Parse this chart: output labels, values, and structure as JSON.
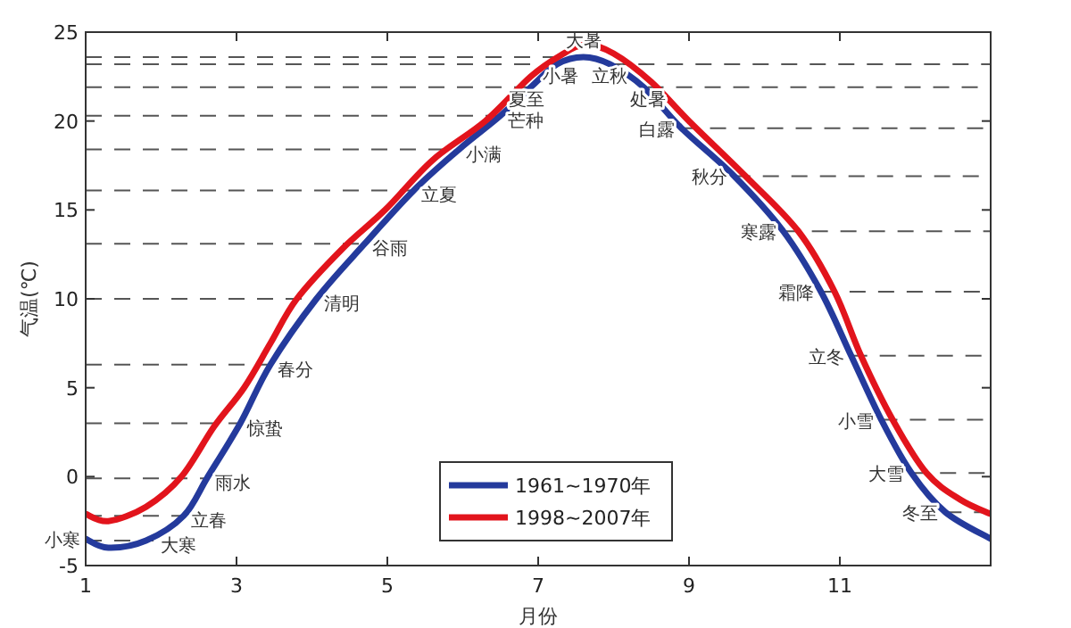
{
  "chart_data": {
    "type": "line",
    "xlabel": "月份",
    "ylabel": "气温(℃)",
    "xlim": [
      1,
      13
    ],
    "ylim": [
      -5,
      25
    ],
    "xticks": [
      1,
      3,
      5,
      7,
      9,
      11
    ],
    "yticks": [
      -5,
      0,
      5,
      10,
      15,
      20,
      25
    ],
    "grid": false,
    "legend": "bottom",
    "marker": "none",
    "line_style": "solid",
    "series": [
      {
        "name": "1961~1970年",
        "color": "#243a9c",
        "x": [
          1,
          1.3,
          1.8,
          2.3,
          2.62,
          3.05,
          3.45,
          4.06,
          4.7,
          5.35,
          5.95,
          6.5,
          6.9,
          7.25,
          7.6,
          7.95,
          8.4,
          8.9,
          9.6,
          10.25,
          10.75,
          11.15,
          11.55,
          11.95,
          12.4,
          13
        ],
        "values": [
          -3.5,
          -4.0,
          -3.6,
          -2.2,
          0,
          3.0,
          6.3,
          10,
          13.1,
          16.1,
          18.4,
          20.3,
          21.9,
          23.2,
          23.6,
          23.2,
          21.9,
          19.6,
          16.9,
          13.8,
          10.4,
          6.8,
          3.2,
          0.2,
          -2.0,
          -3.5
        ]
      },
      {
        "name": "1998~2007年",
        "color": "#e2141c",
        "x": [
          1,
          1.3,
          1.8,
          2.27,
          2.7,
          3.1,
          3.45,
          3.8,
          4.4,
          4.97,
          5.6,
          6.3,
          6.9,
          7.3,
          7.63,
          8.0,
          8.5,
          9.0,
          9.75,
          10.45,
          10.93,
          11.28,
          11.7,
          12.15,
          12.6,
          13
        ],
        "values": [
          -2.1,
          -2.5,
          -1.7,
          0,
          2.8,
          5,
          7.5,
          10,
          12.8,
          15,
          17.8,
          20,
          22.5,
          23.7,
          24.3,
          23.8,
          22.2,
          20,
          16.9,
          13.8,
          10.4,
          6.8,
          3.2,
          0.2,
          -1.3,
          -2.1
        ]
      }
    ],
    "annotations": [
      {
        "text": "小寒",
        "x": 1,
        "y": -3.5
      },
      {
        "text": "大寒",
        "x": 1.9,
        "y": -3.6
      },
      {
        "text": "立春",
        "x": 2.3,
        "y": -2.2
      },
      {
        "text": "雨水",
        "x": 2.62,
        "y": -0.1
      },
      {
        "text": "惊蛰",
        "x": 3.05,
        "y": 3.0
      },
      {
        "text": "春分",
        "x": 3.45,
        "y": 6.3
      },
      {
        "text": "清明",
        "x": 4.06,
        "y": 10.0
      },
      {
        "text": "谷雨",
        "x": 4.7,
        "y": 13.1
      },
      {
        "text": "立夏",
        "x": 5.35,
        "y": 16.1
      },
      {
        "text": "小满",
        "x": 5.95,
        "y": 18.4
      },
      {
        "text": "芒种",
        "x": 6.5,
        "y": 20.3
      },
      {
        "text": "夏至",
        "x": 6.85,
        "y": 21.9
      },
      {
        "text": "小暑",
        "x": 7.3,
        "y": 23.2
      },
      {
        "text": "大暑",
        "x": 7.6,
        "y": 23.6
      },
      {
        "text": "立秋",
        "x": 7.95,
        "y": 23.2
      },
      {
        "text": "处暑",
        "x": 8.45,
        "y": 21.9
      },
      {
        "text": "白露",
        "x": 8.9,
        "y": 19.6
      },
      {
        "text": "秋分",
        "x": 9.6,
        "y": 16.9
      },
      {
        "text": "寒露",
        "x": 10.25,
        "y": 13.8
      },
      {
        "text": "霜降",
        "x": 10.75,
        "y": 10.4
      },
      {
        "text": "立冬",
        "x": 11.15,
        "y": 6.8
      },
      {
        "text": "小雪",
        "x": 11.55,
        "y": 3.2
      },
      {
        "text": "大雪",
        "x": 11.95,
        "y": 0.2
      },
      {
        "text": "冬至",
        "x": 12.4,
        "y": -2.0
      }
    ]
  }
}
